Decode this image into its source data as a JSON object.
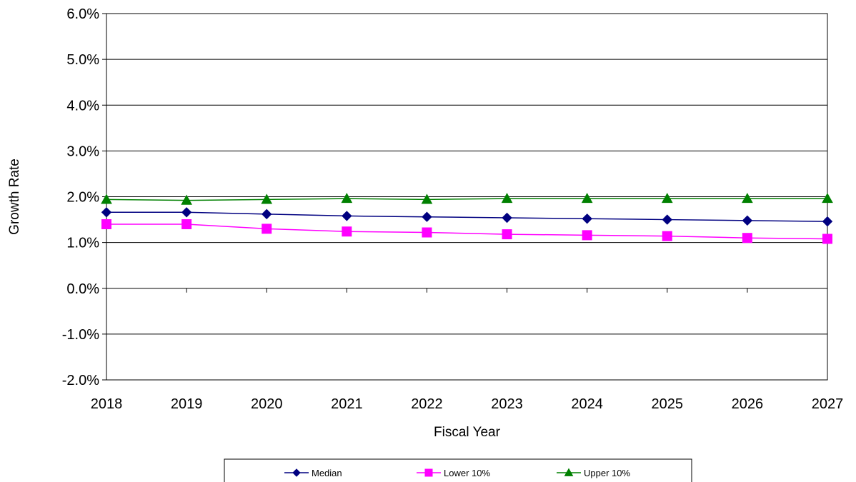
{
  "chart_data": {
    "type": "line",
    "xlabel": "Fiscal Year",
    "ylabel": "Growth Rate",
    "x": [
      "2018",
      "2019",
      "2020",
      "2021",
      "2022",
      "2023",
      "2024",
      "2025",
      "2026",
      "2027"
    ],
    "ylim": [
      -2.0,
      6.0
    ],
    "yticks": [
      "-2.0%",
      "-1.0%",
      "0.0%",
      "1.0%",
      "2.0%",
      "3.0%",
      "4.0%",
      "5.0%",
      "6.0%"
    ],
    "grid": true,
    "legend_position": "bottom",
    "series": [
      {
        "name": "Median",
        "color": "#000080",
        "marker": "diamond",
        "values": [
          1.66,
          1.66,
          1.62,
          1.58,
          1.56,
          1.54,
          1.52,
          1.5,
          1.48,
          1.46
        ]
      },
      {
        "name": "Lower 10%",
        "color": "#FF00FF",
        "marker": "square",
        "values": [
          1.4,
          1.4,
          1.3,
          1.24,
          1.22,
          1.18,
          1.16,
          1.14,
          1.1,
          1.08
        ]
      },
      {
        "name": "Upper 10%",
        "color": "#008000",
        "marker": "triangle",
        "values": [
          1.94,
          1.92,
          1.94,
          1.96,
          1.94,
          1.96,
          1.96,
          1.96,
          1.96,
          1.96
        ]
      }
    ]
  }
}
